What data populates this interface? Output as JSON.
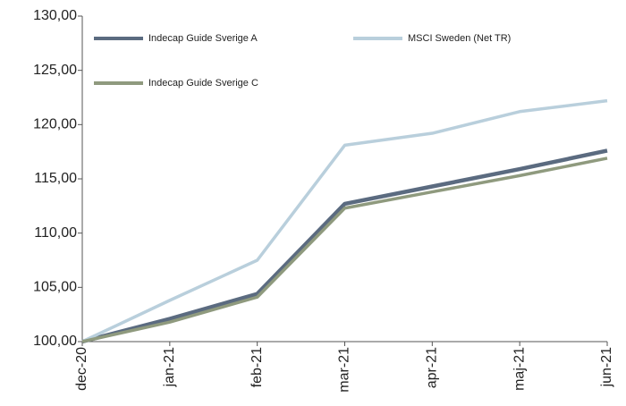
{
  "chart_data": {
    "type": "line",
    "categories": [
      "dec-20",
      "jan-21",
      "feb-21",
      "mar-21",
      "apr-21",
      "maj-21",
      "jun-21"
    ],
    "series": [
      {
        "name": "Indecap Guide Sverige A",
        "color": "#5b6b80",
        "values": [
          100,
          102.1,
          104.4,
          112.7,
          114.3,
          115.9,
          117.6
        ]
      },
      {
        "name": "MSCI Sweden (Net TR)",
        "color": "#b9cfdc",
        "values": [
          100,
          103.8,
          107.5,
          118.1,
          119.2,
          121.2,
          122.2
        ]
      },
      {
        "name": "Indecap Guide Sverige C",
        "color": "#8f9a7e",
        "values": [
          100,
          101.8,
          104.1,
          112.3,
          113.8,
          115.3,
          116.9
        ]
      }
    ],
    "ylim": [
      100,
      130
    ],
    "yticks": [
      {
        "value": 100,
        "label": "100,00"
      },
      {
        "value": 105,
        "label": "105,00"
      },
      {
        "value": 110,
        "label": "110,00"
      },
      {
        "value": 115,
        "label": "115,00"
      },
      {
        "value": 120,
        "label": "120,00"
      },
      {
        "value": 125,
        "label": "125,00"
      },
      {
        "value": 130,
        "label": "130,00"
      }
    ],
    "grid": false,
    "legend": "upper left"
  }
}
